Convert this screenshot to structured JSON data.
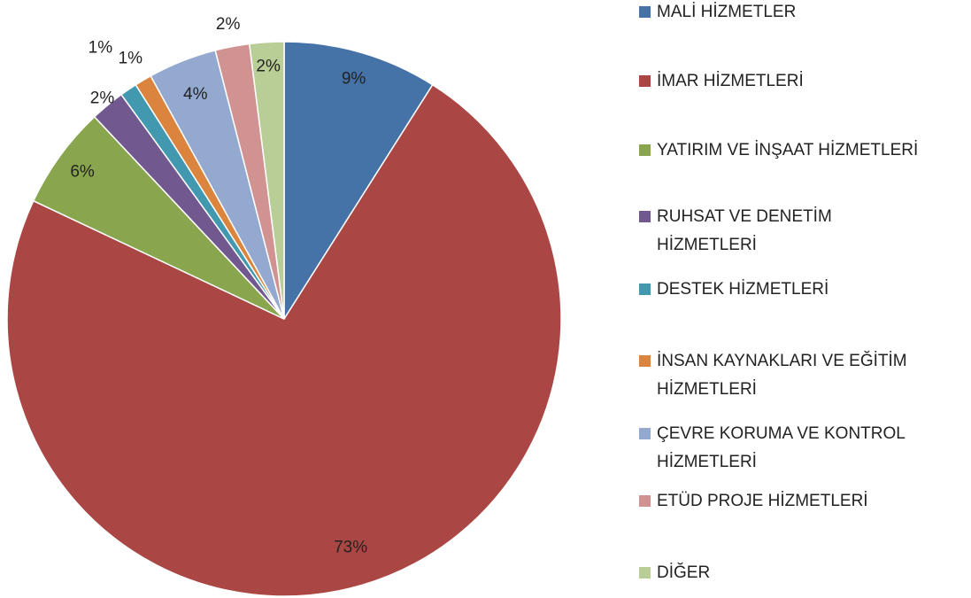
{
  "chart_data": {
    "type": "pie",
    "categories": [
      "MALİ HİZMETLER",
      "İMAR HİZMETLERİ",
      "YATIRIM VE İNŞAAT HİZMETLERİ",
      "RUHSAT VE DENETİM HİZMETLERİ",
      "DESTEK HİZMETLERİ",
      "İNSAN KAYNAKLARI VE EĞİTİM HİZMETLERİ",
      "ÇEVRE KORUMA VE KONTROL HİZMETLERİ",
      "ETÜD PROJE HİZMETLERİ",
      "DİĞER"
    ],
    "values": [
      9,
      73,
      6,
      2,
      1,
      1,
      4,
      2,
      2
    ],
    "value_labels": [
      "9%",
      "73%",
      "6%",
      "2%",
      "1%",
      "1%",
      "4%",
      "2%",
      "2%"
    ],
    "colors": [
      "#4572a7",
      "#aa4643",
      "#89a54e",
      "#71588f",
      "#4198af",
      "#db843d",
      "#93a9cf",
      "#d19392",
      "#b9cd96"
    ],
    "legend": "right"
  }
}
